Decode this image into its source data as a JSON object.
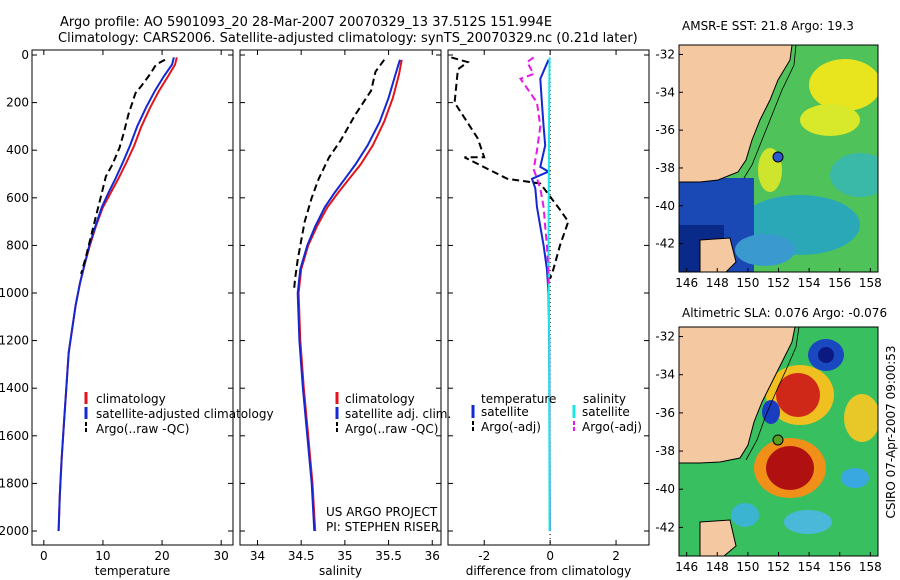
{
  "header": {
    "line1": "Argo profile: AO 5901093_20 28-Mar-2007 20070329_13 37.512S 151.994E",
    "line2": "Climatology: CARS2006. Satellite-adjusted climatology: synTS_20070329.nc (0.21d later)"
  },
  "colors": {
    "clim": "#e4141b",
    "sat": "#1428d2",
    "argo": "#000000",
    "sat_s": "#1ee6e6",
    "argo_s": "#e619e6",
    "land": "#f4c8a0"
  },
  "chart_data": [
    {
      "id": "temperature",
      "type": "line",
      "xlabel": "temperature",
      "xlim": [
        -2,
        32
      ],
      "xticks": [
        0,
        10,
        20,
        30
      ],
      "ylim": [
        0,
        2050
      ],
      "yticks": [
        0,
        200,
        400,
        600,
        800,
        1000,
        1200,
        1400,
        1600,
        1800,
        2000
      ],
      "legend": [
        "climatology",
        "satellite-adjusted climatology",
        "Argo(..raw -QC)"
      ],
      "series": [
        {
          "name": "climatology",
          "color": "#e4141b",
          "style": "solid",
          "points": [
            [
              22.5,
              10
            ],
            [
              22.2,
              40
            ],
            [
              21.0,
              90
            ],
            [
              19.5,
              150
            ],
            [
              18.0,
              220
            ],
            [
              16.5,
              300
            ],
            [
              15.3,
              380
            ],
            [
              14.0,
              450
            ],
            [
              12.6,
              520
            ],
            [
              11.3,
              580
            ],
            [
              10.0,
              640
            ],
            [
              8.8,
              720
            ],
            [
              7.8,
              800
            ],
            [
              6.9,
              880
            ],
            [
              6.1,
              960
            ],
            [
              5.4,
              1050
            ],
            [
              4.8,
              1150
            ],
            [
              4.2,
              1250
            ],
            [
              3.8,
              1400
            ],
            [
              3.4,
              1550
            ],
            [
              3.0,
              1700
            ],
            [
              2.7,
              1850
            ],
            [
              2.5,
              2000
            ]
          ]
        },
        {
          "name": "satellite-adjusted climatology",
          "color": "#1428d2",
          "style": "solid",
          "points": [
            [
              22.0,
              10
            ],
            [
              21.7,
              40
            ],
            [
              20.3,
              90
            ],
            [
              18.8,
              150
            ],
            [
              17.3,
              220
            ],
            [
              15.8,
              300
            ],
            [
              14.6,
              380
            ],
            [
              13.4,
              450
            ],
            [
              12.1,
              520
            ],
            [
              10.9,
              580
            ],
            [
              9.8,
              640
            ],
            [
              8.7,
              720
            ],
            [
              7.7,
              800
            ],
            [
              6.9,
              880
            ],
            [
              6.1,
              960
            ],
            [
              5.4,
              1050
            ],
            [
              4.8,
              1150
            ],
            [
              4.2,
              1250
            ],
            [
              3.8,
              1400
            ],
            [
              3.4,
              1550
            ],
            [
              3.0,
              1700
            ],
            [
              2.7,
              1850
            ],
            [
              2.5,
              2000
            ]
          ]
        },
        {
          "name": "Argo(..raw -QC)",
          "color": "#000000",
          "style": "dash",
          "points": [
            [
              20.5,
              20
            ],
            [
              19.0,
              40
            ],
            [
              18.0,
              80
            ],
            [
              16.5,
              130
            ],
            [
              15.5,
              160
            ],
            [
              14.3,
              250
            ],
            [
              13.5,
              330
            ],
            [
              12.8,
              390
            ],
            [
              11.6,
              460
            ],
            [
              10.5,
              510
            ],
            [
              9.6,
              600
            ],
            [
              8.8,
              680
            ],
            [
              8.0,
              760
            ],
            [
              7.2,
              840
            ],
            [
              6.3,
              920
            ]
          ]
        }
      ]
    },
    {
      "id": "salinity",
      "type": "line",
      "xlabel": "salinity",
      "xlim": [
        33.8,
        36.1
      ],
      "xticks": [
        34,
        34.5,
        35,
        35.5,
        36
      ],
      "ylim": [
        0,
        2050
      ],
      "yticks": [
        0,
        200,
        400,
        600,
        800,
        1000,
        1200,
        1400,
        1600,
        1800,
        2000
      ],
      "legend": [
        "climatology",
        "satellite adj. clim.",
        "Argo(..raw -QC)"
      ],
      "annotation": [
        "US ARGO PROJECT",
        "PI: STEPHEN RISER"
      ],
      "series": [
        {
          "name": "climatology",
          "color": "#e4141b",
          "style": "solid",
          "points": [
            [
              35.65,
              20
            ],
            [
              35.62,
              80
            ],
            [
              35.55,
              180
            ],
            [
              35.45,
              280
            ],
            [
              35.32,
              380
            ],
            [
              35.18,
              460
            ],
            [
              35.05,
              520
            ],
            [
              34.92,
              580
            ],
            [
              34.8,
              640
            ],
            [
              34.68,
              720
            ],
            [
              34.58,
              800
            ],
            [
              34.5,
              900
            ],
            [
              34.47,
              1000
            ],
            [
              34.49,
              1200
            ],
            [
              34.53,
              1400
            ],
            [
              34.58,
              1600
            ],
            [
              34.63,
              1800
            ],
            [
              34.66,
              2000
            ]
          ]
        },
        {
          "name": "satellite adj. clim.",
          "color": "#1428d2",
          "style": "solid",
          "points": [
            [
              35.63,
              20
            ],
            [
              35.58,
              80
            ],
            [
              35.5,
              180
            ],
            [
              35.4,
              280
            ],
            [
              35.26,
              380
            ],
            [
              35.12,
              460
            ],
            [
              35.0,
              520
            ],
            [
              34.88,
              580
            ],
            [
              34.77,
              640
            ],
            [
              34.66,
              720
            ],
            [
              34.57,
              800
            ],
            [
              34.49,
              900
            ],
            [
              34.46,
              1000
            ],
            [
              34.48,
              1200
            ],
            [
              34.52,
              1400
            ],
            [
              34.57,
              1600
            ],
            [
              34.62,
              1800
            ],
            [
              34.65,
              2000
            ]
          ]
        },
        {
          "name": "Argo(..raw -QC)",
          "color": "#000000",
          "style": "dash",
          "points": [
            [
              35.45,
              20
            ],
            [
              35.35,
              70
            ],
            [
              35.3,
              150
            ],
            [
              35.12,
              250
            ],
            [
              34.95,
              360
            ],
            [
              34.82,
              430
            ],
            [
              34.7,
              520
            ],
            [
              34.62,
              600
            ],
            [
              34.54,
              700
            ],
            [
              34.5,
              780
            ],
            [
              34.46,
              860
            ],
            [
              34.43,
              940
            ],
            [
              34.42,
              980
            ]
          ]
        }
      ]
    },
    {
      "id": "difference",
      "type": "line",
      "xlabel": "difference from climatology",
      "xlim": [
        -3.1,
        3.0
      ],
      "xticks": [
        -2,
        0,
        2
      ],
      "ylim": [
        0,
        2050
      ],
      "yticks": [
        0,
        200,
        400,
        600,
        800,
        1000,
        1200,
        1400,
        1600,
        1800,
        2000
      ],
      "legend_titles": [
        "temperature",
        "salinity"
      ],
      "legend": [
        "satellite",
        "Argo(-adj)",
        "satellite",
        "Argo(-adj)"
      ],
      "series": [
        {
          "name": "temperature satellite",
          "color": "#1428d2",
          "style": "solid",
          "points": [
            [
              -0.05,
              20
            ],
            [
              -0.3,
              100
            ],
            [
              -0.25,
              200
            ],
            [
              -0.2,
              300
            ],
            [
              -0.15,
              380
            ],
            [
              -0.3,
              470
            ],
            [
              -0.05,
              490
            ],
            [
              -0.55,
              520
            ],
            [
              -0.45,
              560
            ],
            [
              -0.4,
              640
            ],
            [
              -0.3,
              720
            ],
            [
              -0.2,
              800
            ],
            [
              -0.1,
              900
            ],
            [
              -0.05,
              1000
            ],
            [
              -0.03,
              1200
            ],
            [
              -0.02,
              1600
            ],
            [
              -0.01,
              2000
            ]
          ]
        },
        {
          "name": "temperature Argo(-adj)",
          "color": "#000000",
          "style": "dash",
          "points": [
            [
              -3.0,
              10
            ],
            [
              -2.5,
              30
            ],
            [
              -2.8,
              60
            ],
            [
              -2.9,
              200
            ],
            [
              -2.2,
              350
            ],
            [
              -2.0,
              430
            ],
            [
              -2.6,
              430
            ],
            [
              -1.3,
              520
            ],
            [
              -0.3,
              540
            ],
            [
              0.3,
              650
            ],
            [
              0.55,
              700
            ],
            [
              0.3,
              800
            ],
            [
              0.1,
              900
            ],
            [
              0.0,
              940
            ]
          ]
        },
        {
          "name": "salinity satellite",
          "color": "#1ee6e6",
          "style": "solid",
          "points": [
            [
              -0.02,
              10
            ],
            [
              -0.03,
              200
            ],
            [
              -0.04,
              500
            ],
            [
              -0.05,
              800
            ],
            [
              -0.04,
              1000
            ],
            [
              -0.03,
              1200
            ],
            [
              -0.02,
              2000
            ]
          ]
        },
        {
          "name": "salinity Argo(-adj)",
          "color": "#e619e6",
          "style": "dash",
          "points": [
            [
              -0.5,
              10
            ],
            [
              -0.7,
              30
            ],
            [
              -0.5,
              80
            ],
            [
              -0.9,
              100
            ],
            [
              -0.4,
              200
            ],
            [
              -0.3,
              300
            ],
            [
              -0.4,
              400
            ],
            [
              -0.5,
              480
            ],
            [
              -0.3,
              560
            ],
            [
              -0.2,
              640
            ],
            [
              -0.15,
              720
            ],
            [
              -0.1,
              800
            ],
            [
              -0.06,
              900
            ],
            [
              -0.04,
              960
            ]
          ]
        }
      ]
    },
    {
      "id": "sst_map",
      "type": "heatmap",
      "title": "AMSR-E SST: 21.8 Argo: 19.3",
      "xlim": [
        145.5,
        158.5
      ],
      "ylim": [
        -43.5,
        -31.5
      ],
      "xticks": [
        146,
        148,
        150,
        152,
        154,
        156,
        158
      ],
      "yticks": [
        -32,
        -34,
        -36,
        -38,
        -40,
        -42
      ],
      "marker": [
        152.0,
        -37.5
      ]
    },
    {
      "id": "sla_map",
      "type": "heatmap",
      "title": "Altimetric SLA: 0.076 Argo: -0.076",
      "xlim": [
        145.5,
        158.5
      ],
      "ylim": [
        -43.5,
        -31.5
      ],
      "xticks": [
        146,
        148,
        150,
        152,
        154,
        156,
        158
      ],
      "yticks": [
        -32,
        -34,
        -36,
        -38,
        -40,
        -42
      ],
      "marker": [
        152.0,
        -37.5
      ]
    }
  ],
  "footer": {
    "credit": "CSIRO 07-Apr-2007 09:00:53"
  }
}
